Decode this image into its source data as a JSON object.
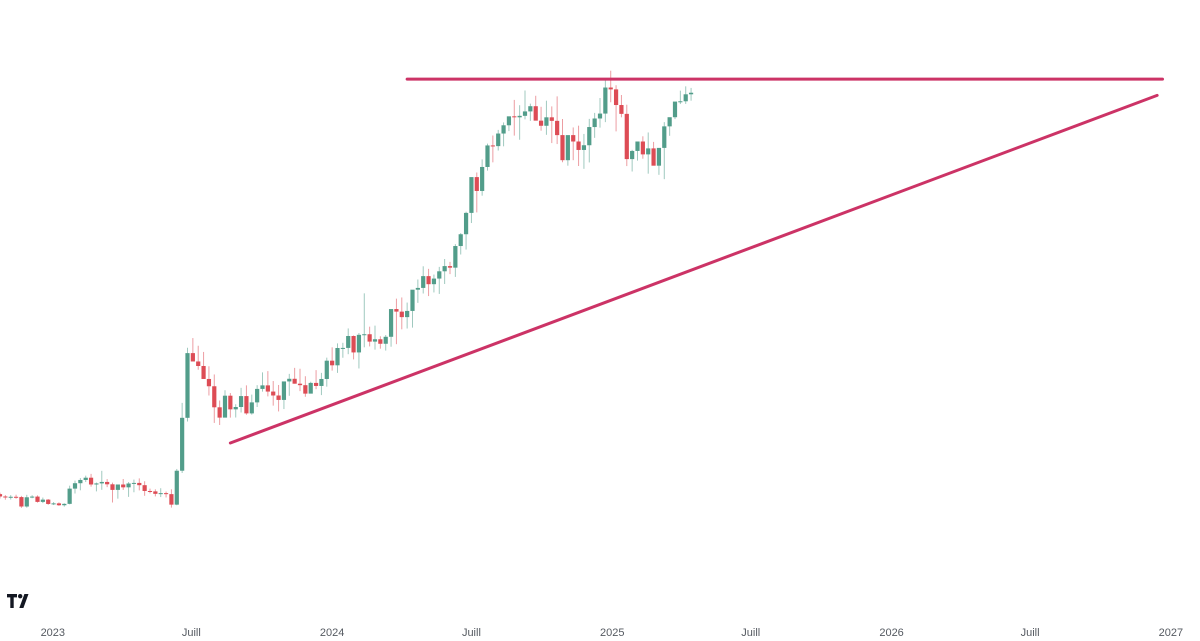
{
  "chart_data": {
    "type": "candlestick",
    "title": "",
    "xlabel": "",
    "ylabel": "",
    "grid": false,
    "legend": "none",
    "y_axis_visible": false,
    "value_units": "relative price (no y-axis shown)",
    "xlim": [
      "2022-10-24",
      "2027-02-08"
    ],
    "ylim": [
      0,
      600
    ],
    "x_ticks": [
      {
        "label": "2023",
        "date": "2023-01-01"
      },
      {
        "label": "Juill",
        "date": "2023-07-01"
      },
      {
        "label": "2024",
        "date": "2024-01-01"
      },
      {
        "label": "Juill",
        "date": "2024-07-01"
      },
      {
        "label": "2025",
        "date": "2025-01-01"
      },
      {
        "label": "Juill",
        "date": "2025-07-01"
      },
      {
        "label": "2026",
        "date": "2026-01-01"
      },
      {
        "label": "Juill",
        "date": "2026-07-01"
      },
      {
        "label": "2027",
        "date": "2027-01-01"
      }
    ],
    "colors": {
      "up": "#529d8a",
      "down": "#dd4c55",
      "trendline": "#cc3366"
    },
    "trendlines": [
      {
        "name": "resistance",
        "from": {
          "date": "2024-04-08",
          "value": 519.5
        },
        "to": {
          "date": "2026-12-21",
          "value": 519.5
        }
      },
      {
        "name": "support",
        "from": {
          "date": "2023-08-21",
          "value": 149.5
        },
        "to": {
          "date": "2026-12-14",
          "value": 503
        }
      }
    ],
    "start_date": "2022-10-24",
    "week_step_days": 7,
    "ohlc": [
      [
        97.5,
        99,
        93,
        95.1
      ],
      [
        95.1,
        96.5,
        91.8,
        94.3
      ],
      [
        94.3,
        96.5,
        92,
        94.8
      ],
      [
        94.8,
        96.9,
        92.8,
        94.5
      ],
      [
        94.5,
        95.7,
        83.5,
        84.9
      ],
      [
        84.9,
        96.8,
        83.7,
        94.3
      ],
      [
        94.3,
        96.4,
        93.3,
        95
      ],
      [
        95,
        96.2,
        88.9,
        89.6
      ],
      [
        89.6,
        94,
        88.4,
        91.9
      ],
      [
        91.9,
        92.5,
        86.6,
        87.5
      ],
      [
        87.5,
        89.4,
        86.4,
        88.1
      ],
      [
        88.1,
        89.1,
        85.5,
        86.2
      ],
      [
        86.2,
        88.2,
        84.8,
        87.6
      ],
      [
        87.6,
        106.1,
        87.1,
        103.1
      ],
      [
        103.1,
        111.2,
        98.1,
        108.6
      ],
      [
        108.6,
        113.8,
        101.4,
        111.9
      ],
      [
        111.9,
        116.3,
        109.8,
        114.2
      ],
      [
        114.2,
        118.1,
        105.1,
        107.3
      ],
      [
        107.3,
        109.3,
        100.3,
        108.4
      ],
      [
        108.4,
        121.2,
        101.9,
        109.9
      ],
      [
        109.9,
        112.8,
        104.6,
        107.5
      ],
      [
        107.5,
        109.2,
        89,
        101.8
      ],
      [
        101.8,
        106.7,
        92.9,
        107.3
      ],
      [
        107.3,
        112.9,
        101.8,
        104.4
      ],
      [
        104.4,
        109.8,
        94.7,
        108.3
      ],
      [
        108.3,
        112.3,
        99.4,
        108.9
      ],
      [
        108.9,
        113.5,
        101.3,
        106.6
      ],
      [
        106.6,
        110.6,
        95.8,
        100.7
      ],
      [
        100.7,
        103.1,
        98.2,
        100.3
      ],
      [
        100.3,
        102.4,
        95.2,
        97.8
      ],
      [
        97.8,
        103.5,
        94.5,
        98.5
      ],
      [
        98.5,
        100.1,
        94.1,
        97.5
      ],
      [
        97.5,
        102.4,
        83.8,
        86.8
      ],
      [
        86.8,
        123.1,
        86.2,
        121.3
      ],
      [
        121.3,
        190.3,
        119,
        175.1
      ],
      [
        175.1,
        246.4,
        171.3,
        240.9
      ],
      [
        240.9,
        256.2,
        233.6,
        232.4
      ],
      [
        232.4,
        248.4,
        224,
        227.8
      ],
      [
        227.8,
        242.1,
        215.2,
        214.6
      ],
      [
        214.6,
        227.5,
        197.8,
        207.2
      ],
      [
        207.2,
        219.2,
        169.9,
        185.8
      ],
      [
        185.8,
        192.7,
        167.8,
        175.3
      ],
      [
        175.3,
        203.1,
        177.1,
        197.6
      ],
      [
        197.6,
        200.3,
        175.3,
        183.7
      ],
      [
        183.7,
        188.9,
        175.4,
        186.1
      ],
      [
        186.1,
        205.6,
        180.5,
        197.2
      ],
      [
        197.2,
        208.1,
        178.2,
        179.6
      ],
      [
        179.6,
        198.7,
        178.3,
        190.8
      ],
      [
        190.8,
        208.3,
        186.1,
        204.5
      ],
      [
        204.5,
        221.3,
        201.8,
        208.1
      ],
      [
        208.1,
        222.6,
        196.9,
        201.8
      ],
      [
        201.8,
        212.5,
        187.5,
        197.8
      ],
      [
        197.8,
        208.5,
        181.6,
        193.3
      ],
      [
        193.3,
        211.7,
        184,
        212.1
      ],
      [
        212.1,
        219.8,
        197.5,
        214.8
      ],
      [
        214.8,
        225.9,
        209.8,
        209.8
      ],
      [
        209.8,
        225,
        202.3,
        208.3
      ],
      [
        208.3,
        217.4,
        196.5,
        199.7
      ],
      [
        199.7,
        211.8,
        200.2,
        210.6
      ],
      [
        210.6,
        223.6,
        204.2,
        207.5
      ],
      [
        207.5,
        220.8,
        198.2,
        214.6
      ],
      [
        214.6,
        236.3,
        206.8,
        233.2
      ],
      [
        233.2,
        246.8,
        223.1,
        228.5
      ],
      [
        228.5,
        250.8,
        220.8,
        246.1
      ],
      [
        246.1,
        251.4,
        236.2,
        246.2
      ],
      [
        246.2,
        266,
        239.8,
        258.3
      ],
      [
        258.3,
        258.9,
        234.5,
        241.6
      ],
      [
        241.6,
        261.3,
        225.3,
        259.5
      ],
      [
        259.5,
        301.7,
        246.8,
        260.1
      ],
      [
        260.1,
        267.8,
        247.7,
        252.6
      ],
      [
        252.6,
        268.8,
        244.4,
        255
      ],
      [
        255,
        258,
        245.4,
        250.4
      ],
      [
        250.4,
        259.3,
        243.5,
        257.5
      ],
      [
        257.5,
        281.6,
        247.4,
        285.7
      ],
      [
        285.7,
        296.3,
        250,
        283.1
      ],
      [
        283.1,
        297.5,
        265.1,
        277.5
      ],
      [
        277.5,
        292.3,
        265.9,
        283.8
      ],
      [
        283.8,
        301.1,
        266.8,
        305.4
      ],
      [
        305.4,
        315.8,
        292,
        307.2
      ],
      [
        307.2,
        329.2,
        301.5,
        319.2
      ],
      [
        319.2,
        326.6,
        298.9,
        311
      ],
      [
        311,
        320.8,
        302.6,
        316.7
      ],
      [
        316.7,
        328.6,
        301.1,
        324.1
      ],
      [
        324.1,
        336.6,
        311.2,
        329.4
      ],
      [
        329.4,
        333.7,
        321.2,
        327.8
      ],
      [
        327.8,
        351.7,
        318.4,
        349.8
      ],
      [
        349.8,
        363,
        341.2,
        361.8
      ],
      [
        361.8,
        384.7,
        346.2,
        383.5
      ],
      [
        383.5,
        414.3,
        373.2,
        419.9
      ],
      [
        419.9,
        424.6,
        384,
        405.8
      ],
      [
        405.8,
        437.9,
        401,
        430.2
      ],
      [
        430.2,
        454,
        426.5,
        452.1
      ],
      [
        452.1,
        462.2,
        434.9,
        451.4
      ],
      [
        451.4,
        467.9,
        446.9,
        464.2
      ],
      [
        464.2,
        475.5,
        451.2,
        472.6
      ],
      [
        472.6,
        479.2,
        466.7,
        481.7
      ],
      [
        481.7,
        498.4,
        462.1,
        480.7
      ],
      [
        480.7,
        493,
        457.9,
        482.2
      ],
      [
        482.2,
        508,
        478.6,
        486.7
      ],
      [
        486.7,
        494.6,
        477.1,
        492
      ],
      [
        492,
        502.6,
        479.3,
        477.3
      ],
      [
        477.3,
        491.4,
        467.1,
        472.1
      ],
      [
        472.1,
        497.6,
        462.9,
        480.7
      ],
      [
        480.7,
        491.8,
        454.5,
        477.1
      ],
      [
        477.1,
        502,
        453.5,
        462.6
      ],
      [
        462.6,
        479,
        435,
        437.1
      ],
      [
        437.1,
        460.1,
        431.5,
        462.6
      ],
      [
        462.6,
        470.4,
        437.1,
        456.1
      ],
      [
        456.1,
        472.2,
        431.2,
        447.5
      ],
      [
        447.5,
        463.8,
        428.3,
        452.3
      ],
      [
        452.3,
        479.1,
        434.8,
        470.8
      ],
      [
        470.8,
        485.2,
        459.8,
        479.5
      ],
      [
        479.5,
        500.4,
        470.2,
        484.5
      ],
      [
        484.5,
        518.9,
        475.8,
        511
      ],
      [
        511,
        528.1,
        496,
        509.1
      ],
      [
        509.1,
        513.3,
        466.4,
        493.2
      ],
      [
        493.2,
        503.4,
        480.7,
        484.2
      ],
      [
        484.2,
        493.5,
        431.1,
        438.2
      ],
      [
        438.2,
        447.6,
        425.6,
        446.5
      ],
      [
        446.5,
        455.5,
        436.7,
        456.1
      ],
      [
        456.1,
        461.4,
        438.6,
        443
      ],
      [
        443,
        465.3,
        423.4,
        449.1
      ],
      [
        449.1,
        455.7,
        431.7,
        431.5
      ],
      [
        431.5,
        449.2,
        422.2,
        449.6
      ],
      [
        449.6,
        475.8,
        417.8,
        471.5
      ],
      [
        471.5,
        477.5,
        461.9,
        480.8
      ],
      [
        480.8,
        496.3,
        478.8,
        496.7
      ],
      [
        496.7,
        507.8,
        494.2,
        497
      ],
      [
        497,
        512.2,
        494.3,
        504.1
      ],
      [
        504.1,
        510.6,
        497.6,
        505.7
      ]
    ]
  },
  "branding": {
    "logo": "tradingview-logo"
  }
}
